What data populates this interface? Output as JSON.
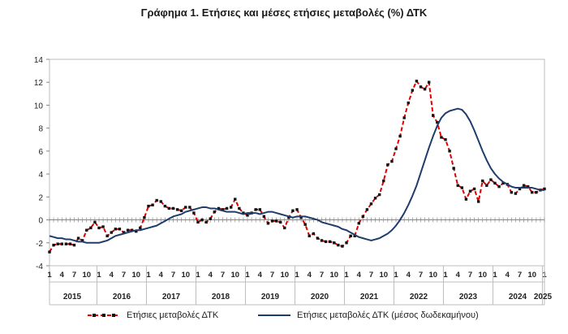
{
  "chart_data": {
    "type": "line",
    "title": "Γράφημα 1. Ετήσιες και μέσες ετήσιες μεταβολές (%) ΔΤΚ",
    "xlabel": "",
    "ylabel": "",
    "ylim": [
      -4,
      14
    ],
    "yticks": [
      14,
      12,
      10,
      8,
      6,
      4,
      2,
      0,
      -2,
      -4
    ],
    "grid": false,
    "legend_position": "bottom",
    "x_start": "2015-01",
    "month_tick_labels": [
      "1",
      "4",
      "7",
      "10"
    ],
    "year_labels": [
      "2015",
      "2016",
      "2017",
      "2018",
      "2019",
      "2020",
      "2021",
      "2022",
      "2023",
      "2024",
      "2025"
    ],
    "series": [
      {
        "name": "Ετήσιες μεταβολές ΔΤΚ",
        "color": "#e00000",
        "style": "dashed-with-markers",
        "values": [
          -2.8,
          -2.2,
          -2.1,
          -2.1,
          -2.1,
          -2.1,
          -2.2,
          -1.6,
          -1.8,
          -0.9,
          -0.7,
          -0.2,
          -0.7,
          -0.6,
          -1.4,
          -1.1,
          -0.8,
          -0.8,
          -1.1,
          -0.9,
          -0.9,
          -1.0,
          -0.7,
          0.2,
          1.2,
          1.3,
          1.7,
          1.6,
          1.2,
          1.0,
          1.0,
          0.9,
          0.8,
          1.1,
          1.1,
          0.6,
          -0.2,
          0.0,
          -0.2,
          0.1,
          0.7,
          1.0,
          0.9,
          1.0,
          1.1,
          1.8,
          1.0,
          0.6,
          0.4,
          0.6,
          0.9,
          0.9,
          0.3,
          -0.3,
          -0.1,
          -0.1,
          -0.2,
          -0.7,
          0.2,
          0.8,
          0.9,
          0.2,
          -0.4,
          -1.4,
          -1.2,
          -1.6,
          -1.8,
          -1.9,
          -1.9,
          -2.0,
          -2.2,
          -2.3,
          -2.0,
          -1.4,
          -1.4,
          -0.3,
          0.3,
          0.9,
          1.4,
          1.9,
          2.2,
          3.4,
          4.8,
          5.1,
          6.2,
          7.3,
          8.9,
          10.2,
          11.3,
          12.1,
          11.6,
          11.4,
          12.0,
          9.1,
          8.5,
          7.2,
          7.0,
          6.0,
          4.5,
          3.0,
          2.8,
          1.8,
          2.5,
          2.7,
          1.6,
          3.4,
          3.0,
          3.5,
          3.2,
          2.9,
          3.2,
          3.1,
          2.4,
          2.3,
          2.7,
          3.0,
          2.9,
          2.4,
          2.4,
          2.6,
          2.7
        ]
      },
      {
        "name": "Ετήσιες μεταβολές ΔΤΚ (μέσος δωδεκαμήνου)",
        "color": "#1f3d6b",
        "style": "solid",
        "values": [
          -1.4,
          -1.5,
          -1.6,
          -1.6,
          -1.7,
          -1.7,
          -1.8,
          -1.9,
          -1.9,
          -2.0,
          -2.0,
          -2.0,
          -2.0,
          -1.9,
          -1.8,
          -1.6,
          -1.4,
          -1.3,
          -1.2,
          -1.1,
          -1.0,
          -0.9,
          -0.9,
          -0.8,
          -0.7,
          -0.6,
          -0.5,
          -0.3,
          -0.1,
          0.1,
          0.3,
          0.4,
          0.5,
          0.7,
          0.8,
          0.9,
          1.0,
          1.1,
          1.1,
          1.0,
          1.0,
          0.9,
          0.8,
          0.7,
          0.7,
          0.7,
          0.6,
          0.5,
          0.6,
          0.6,
          0.6,
          0.5,
          0.6,
          0.7,
          0.7,
          0.6,
          0.5,
          0.4,
          0.3,
          0.2,
          0.3,
          0.3,
          0.3,
          0.2,
          0.1,
          0.0,
          -0.2,
          -0.3,
          -0.4,
          -0.5,
          -0.6,
          -0.8,
          -0.9,
          -1.1,
          -1.3,
          -1.5,
          -1.6,
          -1.7,
          -1.8,
          -1.7,
          -1.6,
          -1.4,
          -1.2,
          -0.9,
          -0.5,
          0.0,
          0.6,
          1.3,
          2.1,
          3.0,
          4.1,
          5.2,
          6.3,
          7.3,
          8.2,
          8.9,
          9.3,
          9.5,
          9.6,
          9.7,
          9.6,
          9.2,
          8.6,
          7.8,
          6.9,
          6.0,
          5.2,
          4.5,
          4.0,
          3.6,
          3.3,
          3.1,
          2.9,
          2.8,
          2.8,
          2.8,
          2.8,
          2.8,
          2.7,
          2.6,
          2.6
        ]
      }
    ]
  }
}
